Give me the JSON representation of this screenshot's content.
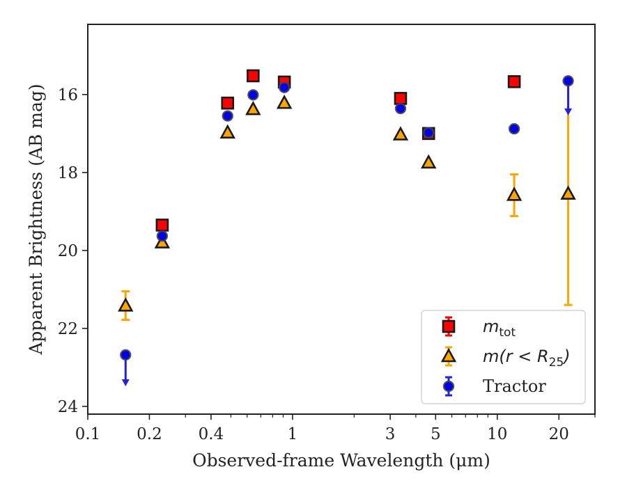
{
  "chart_data": {
    "type": "scatter",
    "title": "",
    "xlabel": "Observed-frame Wavelength (μm)",
    "ylabel": "Apparent Brightness (AB mag)",
    "xscale": "log",
    "xlim": [
      0.1,
      30
    ],
    "ylim": [
      24.2,
      14.2
    ],
    "y_inverted": true,
    "grid": false,
    "legend_position": "lower-right",
    "x_major_ticks": [
      {
        "value": 0.1,
        "label": "0.1"
      },
      {
        "value": 0.2,
        "label": "0.2"
      },
      {
        "value": 0.4,
        "label": "0.4"
      },
      {
        "value": 1,
        "label": "1"
      },
      {
        "value": 3,
        "label": "3"
      },
      {
        "value": 5,
        "label": "5"
      },
      {
        "value": 10,
        "label": "10"
      },
      {
        "value": 20,
        "label": "20"
      }
    ],
    "x_minor_ticks": [
      0.3,
      0.5,
      0.6,
      0.7,
      0.8,
      0.9,
      2,
      4,
      6,
      7,
      8,
      9,
      30
    ],
    "y_ticks": [
      {
        "value": 16,
        "label": "16"
      },
      {
        "value": 18,
        "label": "18"
      },
      {
        "value": 20,
        "label": "20"
      },
      {
        "value": 22,
        "label": "22"
      },
      {
        "value": 24,
        "label": "24"
      }
    ],
    "series": [
      {
        "legend_label": "m_tot",
        "legend_math": {
          "base": "m",
          "sub": "tot"
        },
        "marker": "square",
        "face_color": "#ff0000",
        "edge_color": "#1a1a1a",
        "error_color": "#ff0000",
        "points": [
          {
            "x": 0.231,
            "y": 19.35
          },
          {
            "x": 0.482,
            "y": 16.22
          },
          {
            "x": 0.642,
            "y": 15.52
          },
          {
            "x": 0.912,
            "y": 15.68
          },
          {
            "x": 3.37,
            "y": 16.1
          },
          {
            "x": 4.62,
            "y": 17.0
          },
          {
            "x": 12.1,
            "y": 15.67
          }
        ]
      },
      {
        "legend_label": "m(r < R_25)",
        "legend_math": {
          "base": "m(r < R",
          "sub": "25",
          "close": ")"
        },
        "marker": "triangle",
        "face_color": "#ffa500",
        "edge_color": "#1a1a1a",
        "error_color": "#ffa500",
        "points": [
          {
            "x": 0.153,
            "y": 21.42,
            "yerr_low": 21.05,
            "yerr_high": 21.78
          },
          {
            "x": 0.231,
            "y": 19.8
          },
          {
            "x": 0.482,
            "y": 16.98
          },
          {
            "x": 0.642,
            "y": 16.38
          },
          {
            "x": 0.912,
            "y": 16.22
          },
          {
            "x": 3.37,
            "y": 17.03
          },
          {
            "x": 4.62,
            "y": 17.75
          },
          {
            "x": 12.1,
            "y": 18.58,
            "yerr_low": 18.05,
            "yerr_high": 19.12
          },
          {
            "x": 22.2,
            "y": 18.55,
            "yerr_low": 15.7,
            "yerr_high": 21.4
          }
        ]
      },
      {
        "legend_label": "Tractor",
        "marker": "circle",
        "face_color": "#0000ee",
        "edge_color": "#444444",
        "error_color": "#2222dd",
        "points": [
          {
            "x": 0.153,
            "y": 22.68,
            "upper_limit": true,
            "arrow_to": 23.45
          },
          {
            "x": 0.231,
            "y": 19.63
          },
          {
            "x": 0.482,
            "y": 16.55
          },
          {
            "x": 0.642,
            "y": 16.01
          },
          {
            "x": 0.912,
            "y": 15.82
          },
          {
            "x": 3.37,
            "y": 16.36
          },
          {
            "x": 4.62,
            "y": 16.98
          },
          {
            "x": 12.1,
            "y": 16.88
          },
          {
            "x": 22.2,
            "y": 15.65,
            "upper_limit": true,
            "arrow_to": 16.5
          }
        ]
      }
    ]
  }
}
